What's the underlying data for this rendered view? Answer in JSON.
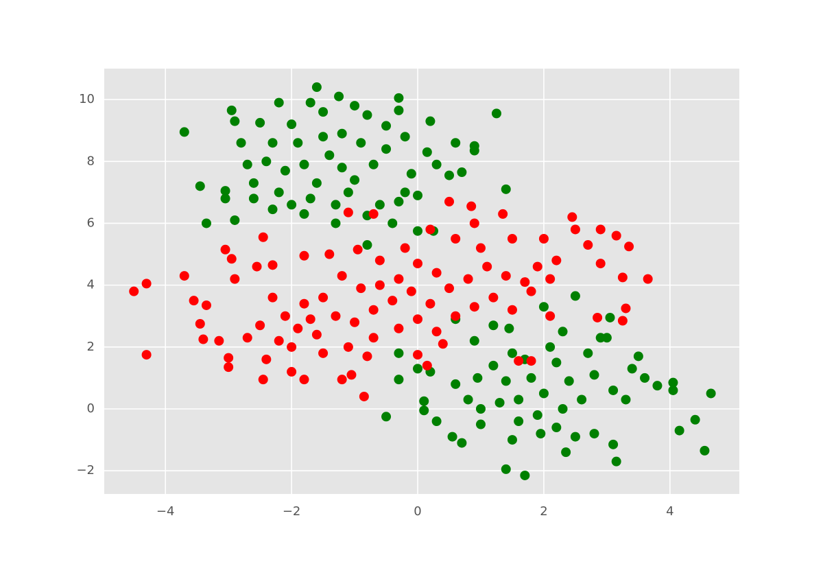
{
  "chart_data": {
    "type": "scatter",
    "xlim": [
      -4.97,
      5.1
    ],
    "ylim": [
      -2.75,
      11.0
    ],
    "xticks": [
      {
        "value": -4,
        "label": "−4"
      },
      {
        "value": -2,
        "label": "−2"
      },
      0,
      2,
      4
    ],
    "yticks": [
      {
        "value": -2,
        "label": "−2"
      },
      0,
      2,
      4,
      6,
      8,
      10
    ],
    "grid": true,
    "series": [
      {
        "color": "#008000",
        "x": [
          -3.7,
          -3.45,
          -3.35,
          -2.95,
          -1.6,
          -1.25,
          -0.3,
          -0.3,
          1.25,
          0.2,
          1.4,
          0.6,
          0.9,
          0.9,
          0.7,
          -3.05,
          -3.05,
          -2.9,
          -2.2,
          -1.7,
          -0.8,
          -0.5,
          -0.2,
          0.15,
          0.3,
          0.5,
          0.0,
          0.25,
          -0.4,
          -0.8,
          -1.3,
          -1.8,
          -2.3,
          -2.6,
          -2.8,
          -2.9,
          -2.5,
          -2.0,
          -1.5,
          -1.0,
          -1.9,
          -1.4,
          -1.2,
          -1.0,
          -0.7,
          -0.5,
          -0.1,
          -0.2,
          -0.6,
          -1.1,
          -1.6,
          -2.1,
          -2.4,
          -2.7,
          -2.2,
          -1.7,
          -1.3,
          -0.9,
          -1.5,
          -2.3,
          -1.8,
          -1.2,
          -0.3,
          0.0,
          -2.0,
          -2.6,
          -0.8,
          4.65,
          4.55,
          4.4,
          4.15,
          4.05,
          4.05,
          3.8,
          3.5,
          3.15,
          3.1,
          1.7,
          1.4,
          0.7,
          0.55,
          -0.5,
          0.1,
          0.1,
          -0.3,
          -0.3,
          0.0,
          0.2,
          0.6,
          0.9,
          1.2,
          1.45,
          2.0,
          2.5,
          2.3,
          3.0,
          3.05,
          2.9,
          3.4,
          3.3,
          3.1,
          2.8,
          2.35,
          2.5,
          1.95,
          1.5,
          1.0,
          0.3,
          0.8,
          0.6,
          1.2,
          1.4,
          1.6,
          1.8,
          2.0,
          2.2,
          2.4,
          2.6,
          2.8,
          1.7,
          1.3,
          2.1,
          1.9,
          2.3,
          1.5,
          0.95,
          3.6,
          2.7,
          1.0,
          1.6,
          2.2
        ],
        "y": [
          8.95,
          7.2,
          6.0,
          9.65,
          10.4,
          10.1,
          10.05,
          9.65,
          9.55,
          9.3,
          7.1,
          8.6,
          8.5,
          8.35,
          7.65,
          7.05,
          6.8,
          6.1,
          9.9,
          9.9,
          9.5,
          9.15,
          8.8,
          8.3,
          7.9,
          7.55,
          5.75,
          5.75,
          6.0,
          6.25,
          6.0,
          6.3,
          6.45,
          7.3,
          8.6,
          9.3,
          9.25,
          9.2,
          9.6,
          9.8,
          8.6,
          8.2,
          7.8,
          7.4,
          7.9,
          8.4,
          7.6,
          7.0,
          6.6,
          7.0,
          7.3,
          7.7,
          8.0,
          7.9,
          7.0,
          6.8,
          6.6,
          8.6,
          8.8,
          8.6,
          7.9,
          8.9,
          6.7,
          6.9,
          6.6,
          6.8,
          5.3,
          0.5,
          -1.35,
          -0.35,
          -0.7,
          0.85,
          0.6,
          0.75,
          1.7,
          -1.7,
          -1.15,
          -2.15,
          -1.95,
          -1.1,
          -0.9,
          -0.25,
          0.25,
          -0.05,
          0.95,
          1.8,
          1.3,
          1.2,
          2.9,
          2.2,
          2.7,
          2.6,
          3.3,
          3.65,
          2.5,
          2.3,
          2.95,
          2.3,
          1.3,
          0.3,
          0.6,
          -0.8,
          -1.4,
          -0.9,
          -0.8,
          -1.0,
          -0.5,
          -0.4,
          0.3,
          0.8,
          1.4,
          0.9,
          0.3,
          1.0,
          0.5,
          1.5,
          0.9,
          0.3,
          1.1,
          1.6,
          0.2,
          2.0,
          -0.2,
          0.0,
          1.8,
          1.0,
          1.0,
          1.8,
          0.0,
          -0.4,
          -0.6
        ]
      },
      {
        "color": "#ff0000",
        "x": [
          -4.5,
          -4.3,
          -4.3,
          -3.7,
          -3.55,
          -3.45,
          -3.4,
          -3.35,
          -3.15,
          -3.05,
          -2.95,
          -2.9,
          -3.0,
          -3.0,
          -2.45,
          -2.45,
          -2.55,
          -2.3,
          -1.8,
          -1.4,
          -0.95,
          -1.1,
          -0.7,
          -0.85,
          0.5,
          0.85,
          1.35,
          0.9,
          2.45,
          2.5,
          2.9,
          3.15,
          3.35,
          2.7,
          2.9,
          3.65,
          3.25,
          3.3,
          3.25,
          2.85,
          2.1,
          1.6,
          1.8,
          0.15,
          0.0,
          -1.2,
          -1.05,
          -1.8,
          -2.0,
          -2.4,
          -2.2,
          -1.9,
          -1.6,
          -1.3,
          -1.0,
          -0.7,
          -0.4,
          -0.1,
          0.2,
          0.5,
          0.8,
          1.1,
          1.4,
          1.7,
          1.9,
          2.2,
          0.3,
          0.0,
          -0.3,
          -0.6,
          -0.9,
          -1.2,
          -1.5,
          -1.8,
          -2.1,
          -2.5,
          -2.7,
          -2.3,
          -1.5,
          -1.1,
          -0.7,
          -0.3,
          0.0,
          0.3,
          0.6,
          0.9,
          1.2,
          1.5,
          1.8,
          2.1,
          0.6,
          0.2,
          -0.2,
          -0.6,
          1.0,
          1.5,
          2.0,
          0.4,
          -0.8,
          -1.7,
          -2.0
        ],
        "y": [
          3.8,
          4.05,
          1.75,
          4.3,
          3.5,
          2.75,
          2.25,
          3.35,
          2.2,
          5.15,
          4.85,
          4.2,
          1.65,
          1.35,
          5.55,
          0.95,
          4.6,
          4.65,
          4.95,
          5.0,
          5.15,
          6.35,
          6.3,
          0.4,
          6.7,
          6.55,
          6.3,
          6.0,
          6.2,
          5.8,
          5.8,
          5.6,
          5.25,
          5.3,
          4.7,
          4.2,
          4.25,
          3.25,
          2.85,
          2.95,
          3.0,
          1.55,
          1.55,
          1.4,
          1.75,
          0.95,
          1.1,
          0.95,
          1.2,
          1.6,
          2.2,
          2.6,
          2.4,
          3.0,
          2.8,
          3.2,
          3.5,
          3.8,
          3.4,
          3.9,
          4.2,
          4.6,
          4.3,
          4.1,
          4.6,
          4.8,
          4.4,
          4.7,
          4.2,
          4.0,
          3.9,
          4.3,
          3.6,
          3.4,
          3.0,
          2.7,
          2.3,
          3.6,
          1.8,
          2.0,
          2.3,
          2.6,
          2.9,
          2.5,
          3.0,
          3.3,
          3.6,
          3.2,
          3.8,
          4.2,
          5.5,
          5.8,
          5.2,
          4.8,
          5.2,
          5.5,
          5.5,
          2.1,
          1.7,
          2.9,
          2.0
        ]
      }
    ]
  }
}
